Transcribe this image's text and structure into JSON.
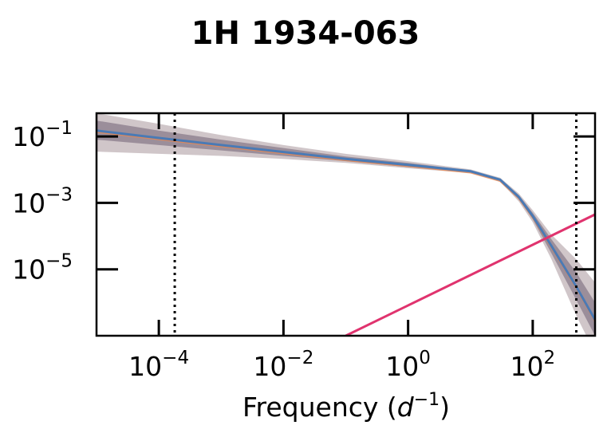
{
  "chart_data": {
    "type": "line",
    "title": "1H 1934-063",
    "xlabel": "Frequency (",
    "xlabel_math": "d",
    "xlabel_sup": "−1",
    "xlabel_close": ")",
    "ylabel": "",
    "x_scale": "log",
    "y_scale": "log",
    "xlim": [
      1e-05,
      1000
    ],
    "ylim": [
      1e-07,
      0.5
    ],
    "x_ticks": [
      {
        "value": 0.0001,
        "base": "10",
        "exp": "−4"
      },
      {
        "value": 0.01,
        "base": "10",
        "exp": "−2"
      },
      {
        "value": 1,
        "base": "10",
        "exp": "0"
      },
      {
        "value": 100,
        "base": "10",
        "exp": "2"
      }
    ],
    "y_ticks": [
      {
        "value": 0.1,
        "base": "10",
        "exp": "−1"
      },
      {
        "value": 0.001,
        "base": "10",
        "exp": "−3"
      },
      {
        "value": 1e-05,
        "base": "10",
        "exp": "−5"
      }
    ],
    "vlines": [
      0.00018,
      500
    ],
    "colors": {
      "median": "#4a7ab5",
      "band_inner": "#5a4a62",
      "band_outer": "#a9979c",
      "orange": "#e8874f",
      "noise": "#e0336e",
      "vline": "#000000"
    },
    "series": [
      {
        "role": "median",
        "x": [
          1e-05,
          0.0001,
          0.001,
          0.01,
          0.1,
          1,
          10,
          30,
          60,
          100,
          200,
          500,
          1000
        ],
        "y": [
          0.15,
          0.09,
          0.055,
          0.034,
          0.021,
          0.014,
          0.009,
          0.005,
          0.0015,
          0.0004,
          5e-05,
          3e-06,
          3e-07
        ]
      },
      {
        "role": "band_inner_upper",
        "x": [
          1e-05,
          0.0001,
          0.001,
          0.01,
          0.1,
          1,
          10,
          30,
          60,
          100,
          200,
          500,
          1000
        ],
        "y": [
          0.3,
          0.15,
          0.08,
          0.045,
          0.025,
          0.016,
          0.0095,
          0.0053,
          0.0017,
          0.0005,
          8e-05,
          8e-06,
          1e-06
        ]
      },
      {
        "role": "band_inner_lower",
        "x": [
          1e-05,
          0.0001,
          0.001,
          0.01,
          0.1,
          1,
          10,
          30,
          60,
          100,
          200,
          500,
          1000
        ],
        "y": [
          0.08,
          0.055,
          0.038,
          0.026,
          0.018,
          0.012,
          0.0085,
          0.0047,
          0.0013,
          0.00032,
          3e-05,
          1.2e-06,
          1e-07
        ]
      },
      {
        "role": "band_outer_upper",
        "x": [
          1e-05,
          0.0001,
          0.001,
          0.01,
          0.1,
          1,
          10,
          30,
          60,
          100,
          200,
          500,
          1000
        ],
        "y": [
          0.5,
          0.24,
          0.11,
          0.055,
          0.03,
          0.018,
          0.0102,
          0.0057,
          0.0019,
          0.0006,
          0.00011,
          2e-05,
          4e-06
        ]
      },
      {
        "role": "band_outer_lower",
        "x": [
          1e-05,
          0.0001,
          0.001,
          0.01,
          0.1,
          1,
          10,
          30,
          60,
          100,
          200,
          500,
          1000
        ],
        "y": [
          0.035,
          0.03,
          0.026,
          0.021,
          0.016,
          0.011,
          0.0079,
          0.0044,
          0.0011,
          0.00026,
          2e-05,
          4e-07,
          3e-08
        ]
      },
      {
        "role": "noise",
        "x": [
          0.1,
          1000
        ],
        "y": [
          1e-07,
          0.00045
        ]
      }
    ]
  }
}
